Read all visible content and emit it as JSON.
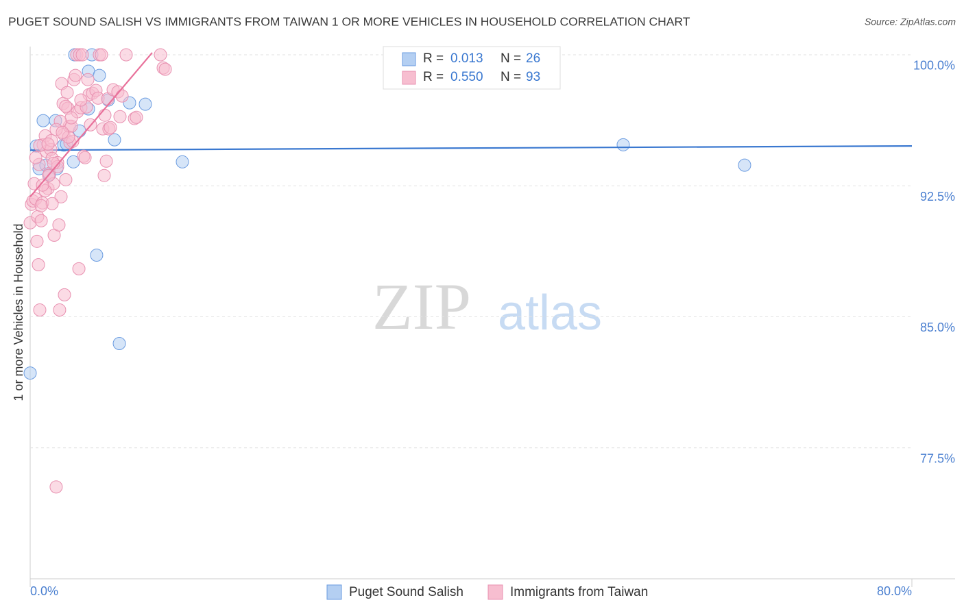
{
  "chart_data": {
    "type": "scatter",
    "title": "PUGET SOUND SALISH VS IMMIGRANTS FROM TAIWAN 1 OR MORE VEHICLES IN HOUSEHOLD CORRELATION CHART",
    "source": "Source: ZipAtlas.com",
    "ylabel": "1 or more Vehicles in Household",
    "watermark": {
      "left": "ZIP",
      "right": "atlas"
    },
    "stat_labels": [
      "R =",
      "N ="
    ],
    "xlim": [
      0,
      80
    ],
    "ylim": [
      70,
      100.47
    ],
    "xticks": [
      {
        "value": 0,
        "label": "0.0%"
      },
      {
        "value": 80,
        "label": "80.0%"
      }
    ],
    "yticks": [
      {
        "value": 77.5,
        "label": "77.5%"
      },
      {
        "value": 85,
        "label": "85.0%"
      },
      {
        "value": 92.5,
        "label": "92.5%"
      },
      {
        "value": 100,
        "label": "100.0%"
      }
    ],
    "grid": true,
    "series": [
      {
        "name": "Puget Sound Salish",
        "color": "#6a9be0",
        "fill": "#b4cff2",
        "line_color": "#3a78d0",
        "r": "0.013",
        "n": "26",
        "trendline": {
          "x": [
            0,
            80
          ],
          "y": [
            94.54,
            94.78
          ]
        },
        "x": [
          0,
          0.56,
          1.18,
          0.81,
          1.43,
          1.74,
          2.43,
          2.3,
          3.05,
          3.92,
          4.48,
          4.04,
          5.29,
          5.29,
          5.6,
          6.28,
          6.03,
          7.09,
          7.65,
          9.02,
          10.45,
          8.09,
          13.81,
          53.81,
          64.82,
          3.3
        ],
        "values": [
          81.78,
          94.78,
          96.23,
          93.48,
          93.68,
          93.13,
          93.48,
          96.23,
          94.83,
          93.87,
          95.64,
          100,
          99.06,
          96.9,
          100,
          98.82,
          88.53,
          97.41,
          95.13,
          97.25,
          97.17,
          83.47,
          93.87,
          94.85,
          93.68,
          94.89
        ]
      },
      {
        "name": "Immigrants from Taiwan",
        "color": "#e890b0",
        "fill": "#f7bed0",
        "line_color": "#e8709a",
        "r": "0.550",
        "n": "93",
        "trendline": {
          "x": [
            0,
            11.07
          ],
          "y": [
            91.87,
            100.12
          ]
        },
        "x": [
          0,
          0.12,
          0.25,
          0.37,
          0.5,
          0.62,
          0.75,
          0.87,
          0.68,
          1.0,
          1.12,
          0.81,
          1.18,
          1.37,
          1.49,
          1.62,
          1.74,
          1.87,
          1.93,
          1.99,
          2.12,
          2.18,
          2.36,
          2.49,
          2.61,
          2.67,
          2.8,
          2.86,
          2.99,
          3.05,
          3.11,
          3.23,
          3.36,
          3.42,
          3.55,
          3.61,
          3.73,
          3.86,
          3.98,
          4.11,
          4.23,
          4.29,
          4.42,
          4.48,
          4.6,
          4.73,
          4.85,
          4.98,
          5.1,
          5.23,
          5.35,
          5.47,
          5.66,
          5.97,
          6.16,
          6.28,
          6.47,
          6.59,
          6.72,
          6.78,
          6.91,
          7.03,
          7.15,
          7.28,
          7.53,
          7.96,
          8.15,
          8.34,
          8.71,
          9.46,
          9.64,
          11.82,
          12.07,
          12.26,
          2.49,
          1.99,
          1.0,
          1.37,
          0.5,
          0.87,
          3.23,
          3.73,
          4.6,
          1.68,
          2.12,
          2.74,
          3.48,
          1.12,
          1.62,
          2.36,
          2.92
        ],
        "values": [
          90.38,
          91.44,
          91.63,
          92.62,
          91.75,
          89.32,
          87.98,
          85.39,
          90.73,
          90.5,
          91.52,
          93.72,
          94.85,
          95.36,
          94.46,
          92.34,
          93.21,
          94.58,
          95.09,
          94.07,
          92.62,
          89.67,
          75.26,
          93.83,
          90.26,
          85.39,
          91.87,
          98.35,
          97.21,
          95.44,
          86.26,
          92.85,
          97.84,
          96.94,
          95.91,
          94.97,
          95.91,
          95.05,
          98.58,
          98.82,
          100,
          96.74,
          87.75,
          100,
          96.97,
          100,
          94.19,
          94.11,
          97.01,
          98.58,
          97.72,
          95.99,
          97.8,
          97.96,
          97.52,
          100,
          100,
          95.76,
          93.09,
          96.54,
          93.91,
          97.48,
          95.76,
          95.84,
          98.0,
          97.88,
          96.46,
          97.64,
          100,
          96.35,
          96.42,
          100,
          99.25,
          99.17,
          93.6,
          91.48,
          91.36,
          92.22,
          94.11,
          94.81,
          97.05,
          96.39,
          97.41,
          93.09,
          93.79,
          96.19,
          95.29,
          92.54,
          94.89,
          95.72,
          95.56
        ]
      }
    ]
  }
}
